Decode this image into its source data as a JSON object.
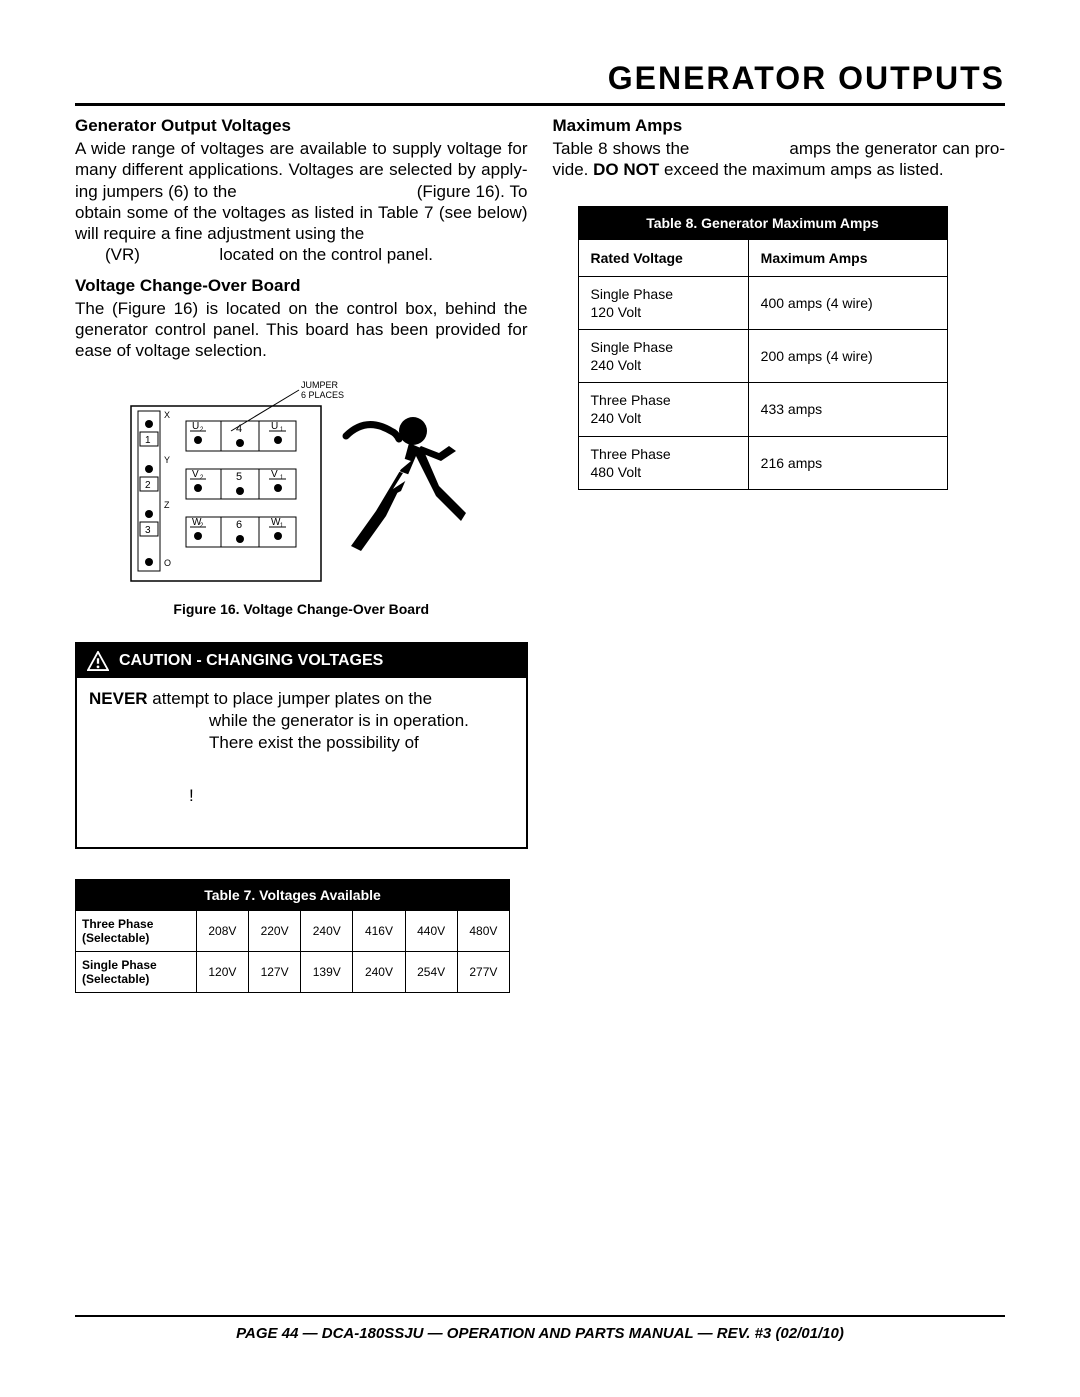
{
  "page_title": "GENERATOR OUTPUTS",
  "left": {
    "h1": "Generator Output Voltages",
    "p1a": "A wide range of voltages are available to supply voltage for many different applications. Voltages are selected by apply­ing jumpers (6) to the",
    "p1b": "(Figure 16). To obtain some of the voltages as listed in Table 7 (see be­low) will require a fine adjustment using the",
    "p1c": "(VR)",
    "p1d": "located on the control panel.",
    "h2": "Voltage Change-Over Board",
    "p2": "The                                            (Figure 16) is located on the control box, behind the generator control panel. This board has been provided for ease of voltage selection.",
    "figure_caption": "Figure 16. Voltage Change-Over Board",
    "diagram": {
      "jumper_label_top": "JUMPER",
      "jumper_label_bottom": "6 PLACES",
      "rows": [
        {
          "left_num": "1",
          "top_letter": "X",
          "u_left": "U",
          "u_left_sub": "2",
          "mid": "4",
          "u_right": "U",
          "u_right_sub": "1"
        },
        {
          "left_num": "2",
          "top_letter": "Y",
          "u_left": "V",
          "u_left_sub": "2",
          "mid": "5",
          "u_right": "V",
          "u_right_sub": "1"
        },
        {
          "left_num": "3",
          "top_letter": "Z",
          "u_left": "W",
          "u_left_sub": "2",
          "mid": "6",
          "u_right": "W",
          "u_right_sub": "1"
        }
      ],
      "bottom_letter": "O"
    },
    "caution_title": "CAUTION - CHANGING VOLTAGES",
    "caution_never": "NEVER",
    "caution_text1": " attempt to place jumper plates on the",
    "caution_text2": "while the generator is in operation. There exist the possibility of",
    "caution_bang": "!",
    "table7": {
      "title": "Table 7. Voltages Available",
      "rows": [
        {
          "label": "Three Phase (Selectable)",
          "cells": [
            "208V",
            "220V",
            "240V",
            "416V",
            "440V",
            "480V"
          ]
        },
        {
          "label": "Single Phase (Selectable)",
          "cells": [
            "120V",
            "127V",
            "139V",
            "240V",
            "254V",
            "277V"
          ]
        }
      ]
    }
  },
  "right": {
    "h1": "Maximum Amps",
    "p1a": "Table 8 shows the",
    "p1b": "amps the generator can pro­vide.",
    "p1c_bold": "DO NOT",
    "p1d": " exceed the maximum amps as listed.",
    "table8": {
      "title": "Table 8. Generator Maximum Amps",
      "col1": "Rated Voltage",
      "col2": "Maximum Amps",
      "rows": [
        {
          "v": "Single Phase 120 Volt",
          "a": "400 amps (4 wire)"
        },
        {
          "v": "Single Phase 240 Volt",
          "a": "200 amps (4 wire)"
        },
        {
          "v": "Three Phase 240 Volt",
          "a": "433 amps"
        },
        {
          "v": "Three Phase 480 Volt",
          "a": "216 amps"
        }
      ]
    }
  },
  "footer": "PAGE 44 — DCA-180SSJU — OPERATION AND PARTS  MANUAL — REV. #3  (02/01/10)"
}
